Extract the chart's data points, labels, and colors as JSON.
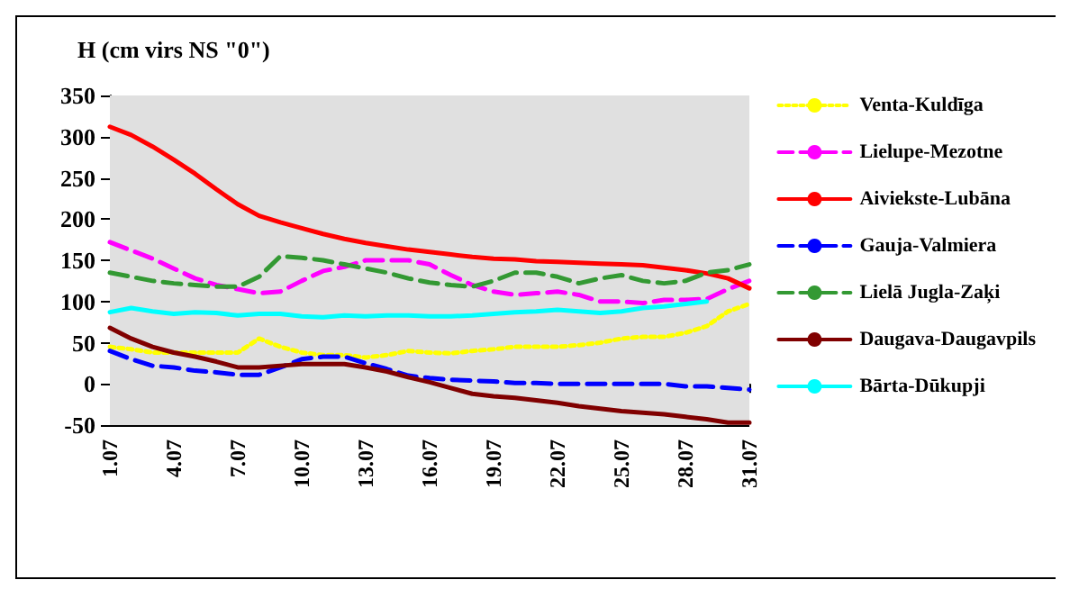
{
  "chart_data": {
    "type": "line",
    "ylabel": "H (cm virs NS \"0\")",
    "categories": [
      "1.07",
      null,
      null,
      "4.07",
      null,
      null,
      "7.07",
      null,
      null,
      "10.07",
      null,
      null,
      "13.07",
      null,
      null,
      "16.07",
      null,
      null,
      "19.07",
      null,
      null,
      "22.07",
      null,
      null,
      "25.07",
      null,
      null,
      "28.07",
      null,
      null,
      "31.07"
    ],
    "ylim": [
      -50,
      350
    ],
    "yticks": [
      -50,
      0,
      50,
      100,
      150,
      200,
      250,
      300,
      350
    ],
    "grid": "y",
    "legend": "right",
    "marker": "none",
    "series": [
      {
        "name": "Venta-Kuldīga",
        "color": "#ffff00",
        "line_style": "dotted",
        "values": [
          45,
          42,
          38,
          38,
          38,
          38,
          38,
          55,
          45,
          38,
          35,
          35,
          32,
          35,
          40,
          38,
          37,
          40,
          42,
          45,
          45,
          45,
          47,
          50,
          55,
          57,
          57,
          62,
          70,
          88,
          97
        ]
      },
      {
        "name": "Lielupe-Mezotne",
        "color": "#ff00ff",
        "line_style": "dashed",
        "values": [
          172,
          162,
          152,
          140,
          128,
          120,
          115,
          110,
          112,
          125,
          137,
          142,
          150,
          150,
          150,
          145,
          132,
          120,
          112,
          108,
          110,
          112,
          108,
          100,
          100,
          98,
          102,
          102,
          103,
          115,
          125
        ]
      },
      {
        "name": "Aiviekste-Lubāna",
        "color": "#ff0000",
        "line_style": "solid",
        "values": [
          312,
          302,
          288,
          272,
          255,
          236,
          218,
          204,
          196,
          189,
          182,
          176,
          171,
          167,
          163,
          160,
          157,
          154,
          152,
          151,
          149,
          148,
          147,
          146,
          145,
          144,
          141,
          138,
          134,
          128,
          116
        ]
      },
      {
        "name": "Gauja-Valmiera",
        "color": "#0000ff",
        "line_style": "dashed",
        "values": [
          40,
          30,
          22,
          20,
          16,
          14,
          11,
          11,
          20,
          30,
          33,
          33,
          25,
          18,
          10,
          7,
          5,
          4,
          3,
          1,
          1,
          0,
          0,
          0,
          0,
          0,
          0,
          -3,
          -3,
          -5,
          -7
        ]
      },
      {
        "name": "Lielā Jugla-Zaķi",
        "color": "#339933",
        "line_style": "dashed",
        "values": [
          135,
          130,
          125,
          122,
          120,
          118,
          118,
          130,
          155,
          153,
          150,
          145,
          140,
          135,
          128,
          123,
          120,
          118,
          125,
          135,
          135,
          130,
          122,
          128,
          132,
          125,
          122,
          125,
          135,
          138,
          145
        ]
      },
      {
        "name": "Daugava-Daugavpils",
        "color": "#800000",
        "line_style": "solid",
        "values": [
          68,
          55,
          45,
          38,
          33,
          27,
          20,
          20,
          22,
          24,
          24,
          24,
          20,
          15,
          8,
          2,
          -5,
          -12,
          -15,
          -17,
          -20,
          -23,
          -27,
          -30,
          -33,
          -35,
          -37,
          -40,
          -43,
          -47,
          -47
        ]
      },
      {
        "name": "Bārta-Dūkupji",
        "color": "#00ffff",
        "line_style": "solid",
        "values": [
          87,
          92,
          88,
          85,
          87,
          86,
          83,
          85,
          85,
          82,
          81,
          83,
          82,
          83,
          83,
          82,
          82,
          83,
          85,
          87,
          88,
          90,
          88,
          86,
          88,
          92,
          94,
          97,
          100,
          null,
          null
        ]
      }
    ]
  }
}
